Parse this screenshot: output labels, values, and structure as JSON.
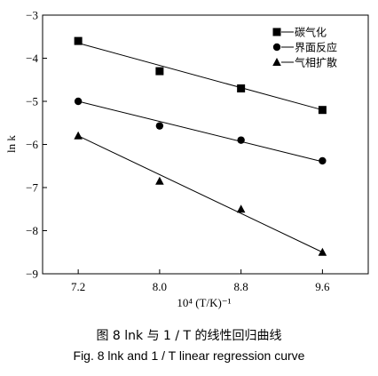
{
  "chart_data": {
    "type": "scatter",
    "xlabel": "10⁴ (T/K)⁻¹",
    "ylabel": "ln k",
    "xlim": [
      6.85,
      10.05
    ],
    "ylim": [
      -9,
      -3
    ],
    "xticks": [
      7.2,
      8.0,
      8.8,
      9.6
    ],
    "yticks": [
      -3,
      -4,
      -5,
      -6,
      -7,
      -8,
      -9
    ],
    "xtick_labels": [
      "7.2",
      "8.0",
      "8.8",
      "9.6"
    ],
    "ytick_labels": [
      "−3",
      "−4",
      "−5",
      "−6",
      "−7",
      "−8",
      "−9"
    ],
    "legend_position": "top-right",
    "series": [
      {
        "name": "碳气化",
        "marker": "square",
        "x": [
          7.2,
          8.0,
          8.8,
          9.6
        ],
        "y": [
          -3.6,
          -4.3,
          -4.7,
          -5.2
        ],
        "fit": [
          [
            7.2,
            -3.65
          ],
          [
            9.6,
            -5.2
          ]
        ]
      },
      {
        "name": "界面反应",
        "marker": "circle",
        "x": [
          7.2,
          8.0,
          8.8,
          9.6
        ],
        "y": [
          -5.0,
          -5.57,
          -5.9,
          -6.38
        ],
        "fit": [
          [
            7.2,
            -5.0
          ],
          [
            9.6,
            -6.4
          ]
        ]
      },
      {
        "name": "气相扩散",
        "marker": "triangle",
        "x": [
          7.2,
          8.0,
          8.8,
          9.6
        ],
        "y": [
          -5.8,
          -6.85,
          -7.5,
          -8.5
        ],
        "fit": [
          [
            7.2,
            -5.8
          ],
          [
            9.6,
            -8.5
          ]
        ]
      }
    ]
  },
  "caption": {
    "cn": "图 8   lnk 与 1 / T 的线性回归曲线",
    "en": "Fig. 8   lnk and 1 / T linear regression curve"
  }
}
